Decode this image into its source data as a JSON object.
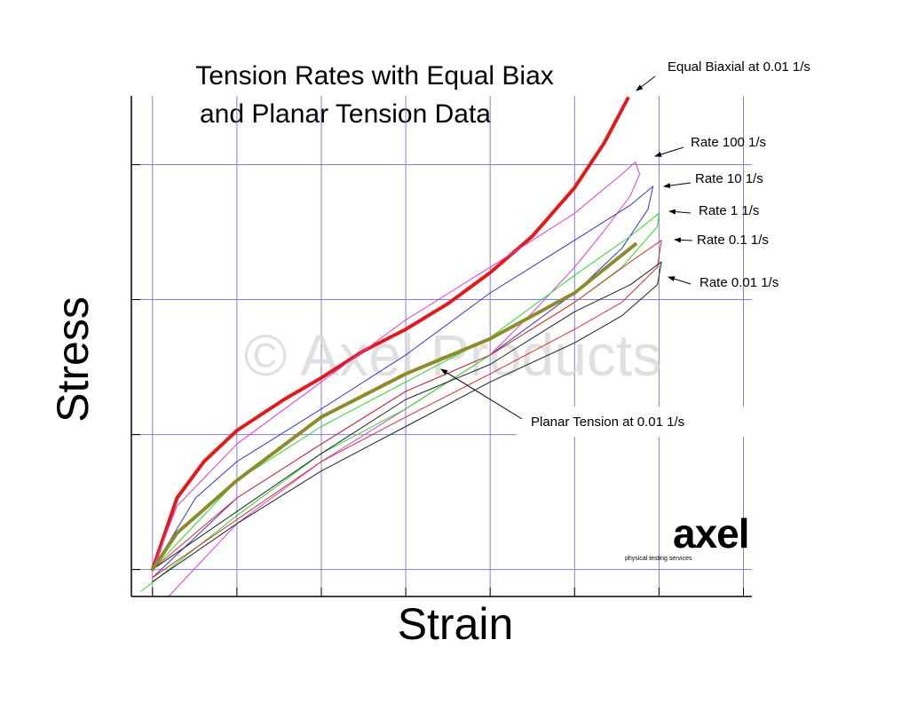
{
  "chart_data": {
    "type": "line",
    "title": [
      "Tension Rates with Equal Biax",
      "and Planar Tension Data"
    ],
    "x_label": "Strain",
    "y_label": "Stress",
    "watermark": "© Axel Products",
    "logo": {
      "name": "axel",
      "tagline": "physical testing services"
    },
    "xlim": [
      -0.25,
      7.1
    ],
    "ylim": [
      -0.2,
      3.51
    ],
    "xticks": [
      0,
      1,
      2,
      3,
      4,
      5,
      6,
      7
    ],
    "yticks": [
      0,
      1,
      2,
      3
    ],
    "grid": true,
    "series": [
      {
        "name": "Equal Biaxial at 0.01 1/s",
        "color": "#e31a1a",
        "x": [
          0,
          0.29,
          0.61,
          1.0,
          1.56,
          2.0,
          2.5,
          3.0,
          3.5,
          4.0,
          4.5,
          5.0,
          5.35,
          5.63
        ],
        "values": [
          0,
          0.53,
          0.8,
          1.03,
          1.26,
          1.42,
          1.62,
          1.78,
          1.97,
          2.2,
          2.47,
          2.83,
          3.16,
          3.49
        ]
      },
      {
        "name": "Rate 100 1/s",
        "color": "#d63fd6",
        "x": [
          0,
          0.29,
          1.0,
          2.0,
          3.0,
          4.0,
          5.0,
          5.56,
          5.72,
          5.77,
          5.66,
          5.35,
          5.0,
          4.51,
          4.0,
          3.0,
          2.0,
          1.0,
          0.19
        ],
        "values": [
          0,
          0.47,
          0.93,
          1.39,
          1.85,
          2.24,
          2.64,
          2.93,
          3.02,
          2.93,
          2.77,
          2.51,
          2.24,
          1.91,
          1.59,
          1.19,
          0.8,
          0.34,
          -0.2
        ]
      },
      {
        "name": "Rate 10 1/s",
        "color": "#3535c8",
        "x": [
          0,
          0.51,
          1.0,
          2.0,
          3.0,
          4.0,
          5.0,
          5.66,
          5.93,
          5.87,
          5.56,
          5.0,
          4.0,
          3.0,
          2.0,
          1.0,
          0
        ],
        "values": [
          0,
          0.53,
          0.8,
          1.19,
          1.59,
          2.05,
          2.44,
          2.7,
          2.84,
          2.67,
          2.38,
          2.05,
          1.59,
          1.32,
          0.93,
          0.53,
          -0.06
        ]
      },
      {
        "name": "Rate 1 1/s",
        "color": "#2fd62f",
        "x": [
          0,
          1.0,
          2.0,
          3.0,
          4.0,
          5.0,
          5.66,
          6.0,
          5.98,
          5.56,
          5.0,
          4.0,
          3.0,
          2.0,
          1.0,
          -0.13
        ],
        "values": [
          0,
          0.66,
          1.06,
          1.39,
          1.72,
          2.18,
          2.47,
          2.64,
          2.54,
          2.24,
          1.98,
          1.59,
          1.19,
          0.86,
          0.4,
          -0.16
        ]
      },
      {
        "name": "Rate 0.1 1/s",
        "color": "#d63030",
        "x": [
          0,
          1.0,
          2.0,
          3.0,
          4.0,
          5.0,
          5.66,
          6.03,
          5.98,
          5.56,
          5.0,
          4.0,
          3.0,
          2.0,
          1.0,
          0
        ],
        "values": [
          0,
          0.53,
          0.93,
          1.32,
          1.59,
          1.98,
          2.28,
          2.44,
          2.24,
          1.98,
          1.78,
          1.45,
          1.13,
          0.8,
          0.37,
          -0.06
        ]
      },
      {
        "name": "Rate 0.01 1/s",
        "color": "#222222",
        "x": [
          0,
          1.0,
          2.0,
          3.0,
          4.0,
          5.0,
          5.66,
          6.03,
          5.98,
          5.56,
          5.0,
          4.0,
          3.0,
          2.0,
          1.0,
          0
        ],
        "values": [
          0,
          0.43,
          0.86,
          1.26,
          1.52,
          1.91,
          2.11,
          2.28,
          2.11,
          1.88,
          1.68,
          1.39,
          1.06,
          0.73,
          0.34,
          -0.09
        ]
      },
      {
        "name": "Planar Tension at 0.01 1/s",
        "color": "#8c8c2a",
        "x": [
          0,
          0.29,
          1.0,
          2.0,
          3.0,
          4.0,
          5.0,
          5.72
        ],
        "values": [
          0,
          0.27,
          0.66,
          1.13,
          1.45,
          1.71,
          2.05,
          2.41
        ]
      }
    ]
  }
}
